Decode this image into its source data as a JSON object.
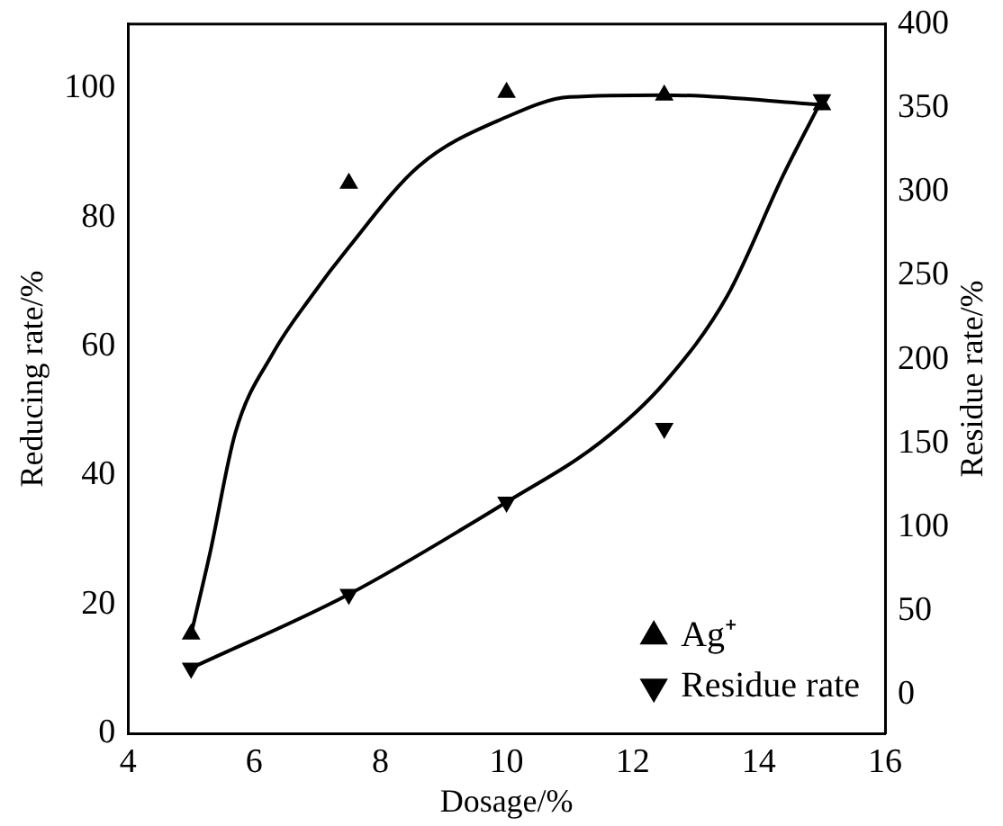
{
  "chart_data": {
    "type": "scatter",
    "xlabel": "Dosage/%",
    "ylabel": "Reducing rate/%",
    "y2label": "Residue rate/%",
    "xlim": [
      4,
      16
    ],
    "xticks": [
      4,
      6,
      8,
      10,
      12,
      14,
      16
    ],
    "ylim": [
      0,
      110
    ],
    "yticks": [
      0,
      20,
      40,
      60,
      80,
      100
    ],
    "y2lim": [
      -23,
      400
    ],
    "y2ticks": [
      0,
      50,
      100,
      150,
      200,
      250,
      300,
      350,
      400
    ],
    "grid": false,
    "legend": "bottom right",
    "marker": "triangle",
    "series": [
      {
        "name": "Ag⁺",
        "color": "#000000",
        "x": [
          5,
          7.5,
          10,
          12.5,
          15
        ],
        "values": [
          15.4,
          85.3,
          99.4,
          99,
          97.5
        ]
      },
      {
        "name": "Residue rate",
        "axis": "y2",
        "color": "#000000",
        "x": [
          5,
          7.5,
          10,
          12.5,
          15
        ],
        "values": [
          16,
          60,
          115,
          159,
          355
        ]
      },
      {
        "type": "line",
        "color": "#000000",
        "marker": "none",
        "x": [
          5,
          5.3,
          5.7,
          6.3,
          6.9,
          7.5,
          8.6,
          10,
          11,
          12.5,
          15
        ],
        "values": [
          15.4,
          28,
          46.6,
          59,
          67.7,
          75.4,
          87.9,
          95.6,
          98.7,
          99,
          97.5
        ]
      },
      {
        "type": "line",
        "axis": "y2",
        "color": "#000000",
        "marker": "none",
        "x": [
          5,
          7.5,
          10,
          11.5,
          12.5,
          13.5,
          14.4,
          15
        ],
        "values": [
          16,
          60,
          115,
          151,
          186,
          238,
          311,
          355
        ]
      }
    ]
  }
}
